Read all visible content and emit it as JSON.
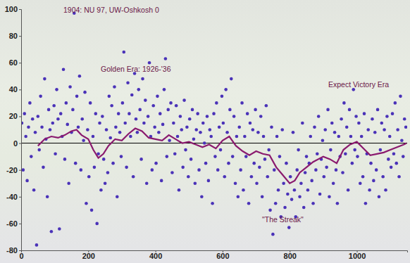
{
  "chart_data": {
    "type": "scatter",
    "annotations": [
      "1904: NU 97, UW-Oshkosh 0",
      "Golden Era: 1926-'36",
      "Expect Victory Era",
      "\"The Streak\""
    ],
    "xlim": [
      0,
      1150
    ],
    "ylim": [
      -80,
      100
    ],
    "xticks": [
      0,
      200,
      400,
      600,
      800,
      1000
    ],
    "yticks": [
      -80,
      -60,
      -40,
      -20,
      0,
      20,
      40,
      60,
      80,
      100
    ],
    "series": [
      {
        "type": "scatter",
        "color": "#4a32b8",
        "marker": "circle",
        "x": [
          2,
          6,
          10,
          14,
          18,
          22,
          26,
          30,
          34,
          38,
          42,
          46,
          50,
          54,
          58,
          62,
          66,
          70,
          74,
          78,
          82,
          86,
          90,
          94,
          98,
          102,
          106,
          110,
          114,
          118,
          122,
          126,
          130,
          134,
          138,
          142,
          146,
          150,
          154,
          158,
          162,
          166,
          170,
          174,
          178,
          182,
          186,
          190,
          194,
          198,
          202,
          206,
          210,
          214,
          218,
          222,
          226,
          230,
          234,
          238,
          242,
          246,
          250,
          254,
          258,
          262,
          266,
          270,
          274,
          278,
          282,
          286,
          290,
          294,
          298,
          302,
          306,
          310,
          314,
          318,
          322,
          326,
          330,
          334,
          338,
          342,
          346,
          350,
          354,
          358,
          362,
          366,
          370,
          374,
          378,
          382,
          386,
          390,
          394,
          398,
          402,
          406,
          410,
          414,
          418,
          422,
          426,
          430,
          434,
          438,
          442,
          446,
          450,
          454,
          458,
          462,
          466,
          470,
          474,
          478,
          482,
          486,
          490,
          494,
          498,
          502,
          506,
          510,
          514,
          518,
          522,
          526,
          530,
          534,
          538,
          542,
          546,
          550,
          554,
          558,
          562,
          566,
          570,
          574,
          578,
          582,
          586,
          590,
          594,
          598,
          602,
          606,
          610,
          614,
          618,
          622,
          626,
          630,
          634,
          638,
          642,
          646,
          650,
          654,
          658,
          662,
          666,
          670,
          674,
          678,
          682,
          686,
          690,
          694,
          698,
          702,
          706,
          710,
          714,
          718,
          722,
          726,
          730,
          734,
          738,
          742,
          746,
          750,
          754,
          758,
          762,
          766,
          770,
          774,
          778,
          782,
          786,
          790,
          794,
          798,
          802,
          806,
          810,
          814,
          818,
          822,
          826,
          830,
          834,
          838,
          842,
          846,
          850,
          854,
          858,
          862,
          866,
          870,
          874,
          878,
          882,
          886,
          890,
          894,
          898,
          902,
          906,
          910,
          914,
          918,
          922,
          926,
          930,
          934,
          938,
          942,
          946,
          950,
          954,
          958,
          962,
          966,
          970,
          974,
          978,
          982,
          986,
          990,
          994,
          998,
          1002,
          1006,
          1010,
          1014,
          1018,
          1022,
          1026,
          1030,
          1034,
          1038,
          1042,
          1046,
          1050,
          1054,
          1058,
          1062,
          1066,
          1070,
          1074,
          1078,
          1082,
          1086,
          1090,
          1094,
          1098,
          1102,
          1106,
          1110,
          1114,
          1118,
          1122,
          1126,
          1130,
          1134,
          1138,
          1142,
          1146
        ],
        "values": [
          15,
          -20,
          22,
          5,
          -28,
          12,
          30,
          -10,
          18,
          -35,
          8,
          -76,
          20,
          -5,
          35,
          12,
          -18,
          48,
          3,
          -40,
          25,
          10,
          -66,
          15,
          28,
          -8,
          40,
          18,
          -64,
          22,
          5,
          55,
          -12,
          30,
          14,
          -30,
          42,
          8,
          25,
          97,
          -15,
          35,
          12,
          50,
          -20,
          18,
          2,
          38,
          -45,
          10,
          -25,
          30,
          -50,
          5,
          -18,
          22,
          -60,
          -8,
          15,
          -35,
          20,
          -12,
          -30,
          10,
          -22,
          35,
          4,
          28,
          -15,
          42,
          12,
          -40,
          22,
          8,
          -10,
          30,
          68,
          15,
          -18,
          45,
          22,
          5,
          36,
          -25,
          52,
          18,
          8,
          40,
          25,
          -12,
          48,
          15,
          32,
          -30,
          20,
          60,
          5,
          -20,
          28,
          12,
          -15,
          35,
          8,
          22,
          -28,
          14,
          40,
          63,
          -10,
          25,
          2,
          30,
          -22,
          15,
          -8,
          28,
          5,
          -35,
          20,
          10,
          -18,
          32,
          -5,
          12,
          -25,
          18,
          -12,
          25,
          3,
          -30,
          10,
          22,
          -20,
          8,
          -40,
          15,
          0,
          -15,
          20,
          -28,
          10,
          5,
          -45,
          22,
          -10,
          30,
          -20,
          12,
          -5,
          35,
          15,
          -25,
          40,
          8,
          -15,
          25,
          48,
          -10,
          20,
          -30,
          5,
          -40,
          12,
          -20,
          30,
          -35,
          5,
          -10,
          22,
          -45,
          15,
          -25,
          10,
          -15,
          25,
          -30,
          8,
          -18,
          20,
          -40,
          5,
          -12,
          28,
          -25,
          -5,
          -50,
          12,
          -68,
          -20,
          -45,
          5,
          -35,
          -10,
          -55,
          10,
          -30,
          -48,
          -15,
          -38,
          -63,
          -25,
          -42,
          8,
          -35,
          -55,
          -20,
          -5,
          -40,
          -30,
          15,
          -48,
          -22,
          -10,
          -35,
          -15,
          5,
          -28,
          -45,
          12,
          -20,
          -8,
          20,
          -38,
          -12,
          2,
          -25,
          10,
          -18,
          25,
          -40,
          -5,
          15,
          -30,
          8,
          -20,
          -45,
          5,
          -10,
          18,
          -22,
          30,
          -8,
          12,
          -35,
          25,
          5,
          -15,
          40,
          -5,
          20,
          -10,
          15,
          -30,
          5,
          -25,
          22,
          -45,
          -8,
          10,
          -35,
          -15,
          18,
          -28,
          8,
          -20,
          25,
          -40,
          -5,
          15,
          -25,
          10,
          -35,
          20,
          -12,
          5,
          -18,
          22,
          -8,
          30,
          -15,
          10,
          -25,
          35,
          2,
          -10,
          18,
          12
        ]
      },
      {
        "type": "line",
        "color": "#8a1a6e",
        "line_style": "solid",
        "x": [
          50,
          70,
          90,
          110,
          130,
          150,
          165,
          180,
          200,
          215,
          230,
          245,
          260,
          280,
          300,
          320,
          340,
          360,
          380,
          400,
          420,
          440,
          460,
          480,
          500,
          520,
          540,
          560,
          580,
          600,
          620,
          640,
          660,
          680,
          700,
          720,
          740,
          760,
          780,
          800,
          815,
          830,
          850,
          870,
          900,
          920,
          940,
          960,
          980,
          1000,
          1020,
          1040,
          1060,
          1080,
          1100,
          1120,
          1140,
          1148
        ],
        "values": [
          -2,
          3,
          5,
          4,
          6,
          9,
          10,
          6,
          3,
          -5,
          -11,
          -8,
          -2,
          3,
          2,
          7,
          11,
          9,
          4,
          3,
          2,
          6,
          3,
          0,
          1,
          -1,
          -3,
          -1,
          -4,
          2,
          5,
          -2,
          -6,
          -9,
          -6,
          -8,
          -9,
          -18,
          -24,
          -30,
          -28,
          -22,
          -18,
          -14,
          -10,
          -12,
          -15,
          -5,
          -1,
          1,
          -4,
          -9,
          -8,
          -7,
          -5,
          -3,
          -1,
          0
        ]
      }
    ]
  }
}
